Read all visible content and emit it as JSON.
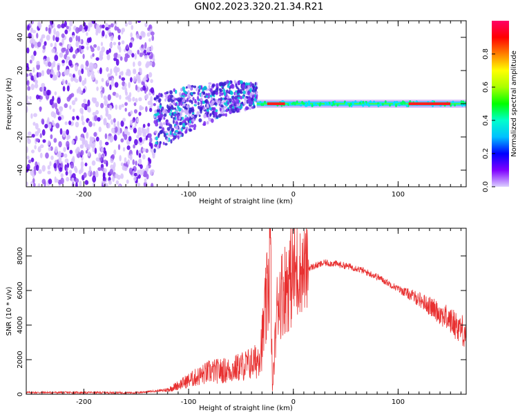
{
  "title": "GN02.2023.320.21.34.R21",
  "colors": {
    "snr_line": "#e83030",
    "spectrogram_noise": "#8a2be2",
    "background": "#ffffff"
  },
  "chart_data": [
    {
      "type": "heatmap",
      "panel": "spectrogram",
      "xlabel": "Height of straight line (km)",
      "ylabel": "Frequency (Hz)",
      "xlim": [
        -255,
        165
      ],
      "ylim": [
        -50,
        50
      ],
      "xticks": [
        -200,
        -100,
        0,
        100
      ],
      "xtick_labels": [
        "-200",
        "-100",
        "0",
        "100"
      ],
      "yticks": [
        -40,
        -20,
        0,
        20,
        40
      ],
      "ytick_labels": [
        "-40",
        "-20",
        "0",
        "20",
        "40"
      ],
      "colorbar": {
        "label": "Normalized spectral amplitude",
        "range": [
          0,
          1
        ],
        "ticks": [
          0.0,
          0.2,
          0.4,
          0.6,
          0.8
        ],
        "tick_labels": [
          "0.0",
          "0.2",
          "0.4",
          "0.6",
          "0.8"
        ],
        "colormap": "hsv"
      },
      "regions": [
        {
          "x": [
            -255,
            -133
          ],
          "freq": [
            -50,
            50
          ],
          "amplitude": 0.15,
          "description": "noise"
        },
        {
          "x": [
            -133,
            -35
          ],
          "freq_trend": [
            [
              -133,
              -12
            ],
            [
              -100,
              -3
            ],
            [
              -60,
              4
            ],
            [
              -35,
              5
            ]
          ],
          "amplitude": 0.3
        },
        {
          "x": [
            -35,
            165
          ],
          "freq": [
            0,
            0
          ],
          "amplitude": 0.45
        },
        {
          "x": [
            -25,
            -8
          ],
          "freq": [
            0,
            0
          ],
          "amplitude": 0.95
        },
        {
          "x": [
            110,
            150
          ],
          "freq": [
            0,
            0
          ],
          "amplitude": 0.95
        }
      ]
    },
    {
      "type": "line",
      "panel": "snr",
      "xlabel": "Height of straight line (km)",
      "ylabel": "SNR (10 * v/v)",
      "xlim": [
        -255,
        165
      ],
      "ylim": [
        0,
        9600
      ],
      "xticks": [
        -200,
        -100,
        0,
        100
      ],
      "xtick_labels": [
        "-200",
        "-100",
        "0",
        "100"
      ],
      "yticks": [
        0,
        2000,
        4000,
        6000,
        8000
      ],
      "ytick_labels": [
        "0",
        "2000",
        "4000",
        "6000",
        "8000"
      ],
      "series": [
        {
          "x": [
            -255,
            -200,
            -150,
            -120,
            -100,
            -80,
            -60,
            -45,
            -35,
            -30,
            -25,
            -22,
            -20,
            -15,
            -10,
            0,
            10,
            20,
            30,
            40,
            60,
            80,
            100,
            120,
            140,
            160,
            165
          ],
          "values": [
            100,
            100,
            90,
            250,
            800,
            1300,
            1400,
            1700,
            1900,
            3000,
            5500,
            8800,
            200,
            5500,
            6000,
            7000,
            7200,
            7400,
            7600,
            7550,
            7300,
            6800,
            6100,
            5500,
            4700,
            3800,
            3500
          ]
        }
      ]
    }
  ]
}
